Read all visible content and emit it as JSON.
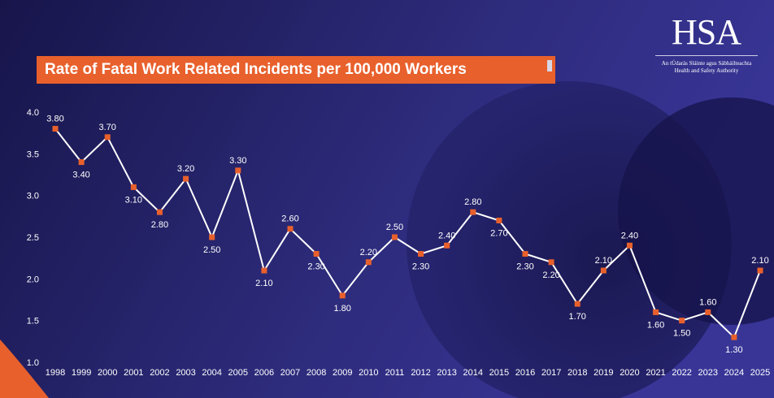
{
  "title": "Rate of Fatal Work Related Incidents per 100,000 Workers",
  "logo": {
    "mark": "HSA",
    "line1": "An tÚdarás Sláinte agus Sábháilteachta",
    "line2": "Health and Safety Authority"
  },
  "colors": {
    "accent": "#e8602c",
    "line": "#ffffff",
    "marker": "#e8602c",
    "background": "#1f1d5c"
  },
  "chart_data": {
    "type": "line",
    "title": "Rate of Fatal Work Related Incidents per 100,000 Workers",
    "xlabel": "",
    "ylabel": "",
    "ylim": [
      1.0,
      4.0
    ],
    "yticks": [
      "1.0",
      "1.5",
      "2.0",
      "2.5",
      "3.0",
      "3.5",
      "4.0"
    ],
    "grid": false,
    "categories": [
      "1998",
      "1999",
      "2000",
      "2001",
      "2002",
      "2003",
      "2004",
      "2005",
      "2006",
      "2007",
      "2008",
      "2009",
      "2010",
      "2011",
      "2012",
      "2013",
      "2014",
      "2015",
      "2016",
      "2017",
      "2018",
      "2019",
      "2020",
      "2021",
      "2022",
      "2023",
      "2024",
      "2025"
    ],
    "values": [
      3.8,
      3.4,
      3.7,
      3.1,
      2.8,
      3.2,
      2.5,
      3.3,
      2.1,
      2.6,
      2.3,
      1.8,
      2.2,
      2.5,
      2.3,
      2.4,
      2.8,
      2.7,
      2.3,
      2.2,
      1.7,
      2.1,
      2.4,
      1.6,
      1.5,
      1.6,
      1.3,
      2.1
    ],
    "labels": [
      "3.80",
      "3.40",
      "3.70",
      "3.10",
      "2.80",
      "3.20",
      "2.50",
      "3.30",
      "2.10",
      "2.60",
      "2.30",
      "1.80",
      "2.20",
      "2.50",
      "2.30",
      "2.40",
      "2.80",
      "2.70",
      "2.30",
      "2.20",
      "1.70",
      "2.10",
      "2.40",
      "1.60",
      "1.50",
      "1.60",
      "1.30",
      "2.10"
    ]
  }
}
